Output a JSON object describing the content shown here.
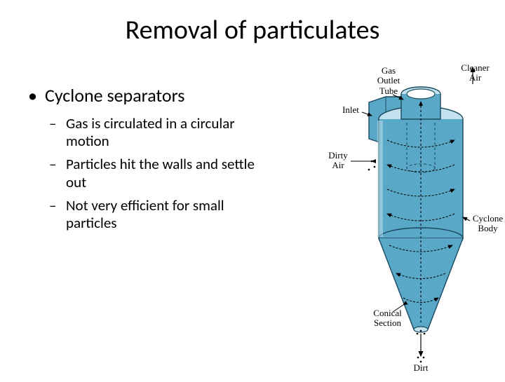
{
  "title": "Removal of particulates",
  "bullets": {
    "main": "Cyclone separators",
    "sub1": "Gas is circulated in a circular motion",
    "sub2": "Particles hit the walls and settle out",
    "sub3": "Not very efficient for small particles"
  },
  "diagram": {
    "type": "technical-schematic",
    "labels": {
      "gas_outlet_tube": "Gas\nOutlet\nTube",
      "cleaner_air": "Cleaner\nAir",
      "inlet": "Inlet",
      "dirty_air": "Dirty\nAir",
      "cyclone_body": "Cyclone\nBody",
      "conical_section": "Conical\nSection",
      "dirt": "Dirt"
    },
    "colors": {
      "body_fill": "#5aa8c8",
      "body_edge": "#1a4a5f",
      "body_light": "#c2e2ef",
      "arrow": "#000000",
      "swirl": "#000000",
      "background": "#ffffff"
    },
    "stroke_width": 1.4,
    "swirl_dash": "3 2"
  }
}
